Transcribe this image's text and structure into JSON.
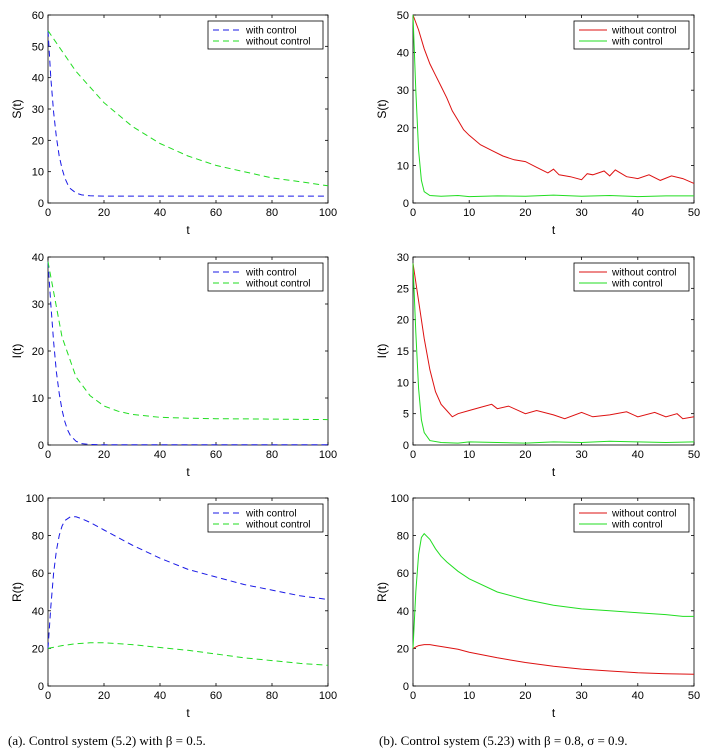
{
  "captions": {
    "left": "(a). Control system (5.2) with β = 0.5.",
    "right": "(b). Control system (5.23) with β = 0.8,  σ = 0.9."
  },
  "colors": {
    "blue": "#1a1ae6",
    "green": "#22dd22",
    "red": "#dd1111",
    "axis": "#000000"
  },
  "chart_data": [
    {
      "id": "S-left",
      "type": "line",
      "xlabel": "t",
      "ylabel": "S(t)",
      "xlim": [
        0,
        100
      ],
      "ylim": [
        0,
        60
      ],
      "xticks": [
        0,
        20,
        40,
        60,
        80,
        100
      ],
      "yticks": [
        0,
        10,
        20,
        30,
        40,
        50,
        60
      ],
      "legend": "top-right",
      "series": [
        {
          "name": "with control",
          "color": "#1a1ae6",
          "dash": true,
          "x": [
            0,
            1,
            2,
            3,
            4,
            5,
            6,
            7,
            8,
            10,
            12,
            15,
            20,
            30,
            50,
            100
          ],
          "y": [
            55,
            40,
            29,
            21,
            15,
            11,
            8,
            6,
            4.6,
            3.2,
            2.6,
            2.3,
            2.2,
            2.2,
            2.2,
            2.2
          ]
        },
        {
          "name": "without control",
          "color": "#22dd22",
          "dash": true,
          "x": [
            0,
            10,
            20,
            30,
            40,
            50,
            60,
            70,
            80,
            90,
            100
          ],
          "y": [
            55,
            42,
            32,
            24.5,
            19,
            15,
            12,
            10,
            8,
            6.8,
            5.5
          ]
        }
      ]
    },
    {
      "id": "S-right",
      "type": "line",
      "xlabel": "t",
      "ylabel": "S(t)",
      "xlim": [
        0,
        50
      ],
      "ylim": [
        0,
        50
      ],
      "xticks": [
        0,
        10,
        20,
        30,
        40,
        50
      ],
      "yticks": [
        0,
        10,
        20,
        30,
        40,
        50
      ],
      "legend": "top-right",
      "series": [
        {
          "name": "without control",
          "color": "#dd1111",
          "dash": false,
          "x": [
            0,
            1,
            2,
            3,
            4,
            5,
            6,
            7,
            8,
            9,
            10,
            12,
            14,
            16,
            18,
            20,
            22,
            24,
            25,
            26,
            28,
            30,
            31,
            32,
            34,
            35,
            36,
            38,
            40,
            42,
            44,
            46,
            48,
            50
          ],
          "y": [
            50,
            46,
            41,
            37,
            34,
            31,
            28,
            24.5,
            22,
            19.5,
            18,
            15.5,
            14,
            12.5,
            11.5,
            11,
            9.5,
            8,
            9,
            7.5,
            7,
            6.2,
            7.8,
            7.5,
            8.5,
            7.2,
            8.8,
            7,
            6.5,
            7.5,
            6,
            7.2,
            6.5,
            5.2
          ]
        },
        {
          "name": "with control",
          "color": "#22dd22",
          "dash": false,
          "x": [
            0,
            0.5,
            1,
            1.5,
            2,
            3,
            5,
            8,
            10,
            15,
            20,
            25,
            30,
            35,
            40,
            45,
            50
          ],
          "y": [
            50,
            30,
            14,
            6,
            3,
            2,
            1.8,
            2,
            1.7,
            1.9,
            1.8,
            2.1,
            1.8,
            2.0,
            1.7,
            1.9,
            1.9
          ]
        }
      ]
    },
    {
      "id": "I-left",
      "type": "line",
      "xlabel": "t",
      "ylabel": "I(t)",
      "xlim": [
        0,
        100
      ],
      "ylim": [
        0,
        40
      ],
      "xticks": [
        0,
        20,
        40,
        60,
        80,
        100
      ],
      "yticks": [
        0,
        10,
        20,
        30,
        40
      ],
      "legend": "top-right",
      "series": [
        {
          "name": "with control",
          "color": "#1a1ae6",
          "dash": true,
          "x": [
            0,
            1,
            2,
            3,
            4,
            5,
            6,
            7,
            8,
            10,
            12,
            15,
            20,
            100
          ],
          "y": [
            39,
            30,
            22,
            15.5,
            11,
            7.5,
            5,
            3.2,
            2,
            0.8,
            0.3,
            0.1,
            0.05,
            0.05
          ]
        },
        {
          "name": "without control",
          "color": "#22dd22",
          "dash": true,
          "x": [
            0,
            5,
            10,
            15,
            20,
            25,
            30,
            40,
            50,
            60,
            80,
            100
          ],
          "y": [
            39,
            23,
            14.5,
            10.5,
            8.3,
            7.2,
            6.5,
            5.9,
            5.7,
            5.6,
            5.5,
            5.4
          ]
        }
      ]
    },
    {
      "id": "I-right",
      "type": "line",
      "xlabel": "t",
      "ylabel": "I(t)",
      "xlim": [
        0,
        50
      ],
      "ylim": [
        0,
        30
      ],
      "xticks": [
        0,
        10,
        20,
        30,
        40,
        50
      ],
      "yticks": [
        0,
        5,
        10,
        15,
        20,
        25,
        30
      ],
      "legend": "top-right",
      "series": [
        {
          "name": "without control",
          "color": "#dd1111",
          "dash": false,
          "x": [
            0,
            1,
            2,
            3,
            4,
            5,
            6,
            7,
            8,
            10,
            12,
            14,
            15,
            17,
            20,
            22,
            25,
            27,
            30,
            32,
            35,
            38,
            40,
            43,
            45,
            47,
            48,
            50
          ],
          "y": [
            29,
            23,
            17,
            12,
            8.5,
            6.5,
            5.5,
            4.5,
            5,
            5.5,
            6,
            6.5,
            5.8,
            6.2,
            5,
            5.5,
            4.8,
            4.2,
            5.2,
            4.5,
            4.8,
            5.3,
            4.5,
            5.2,
            4.5,
            5.0,
            4.2,
            4.5
          ]
        },
        {
          "name": "with control",
          "color": "#22dd22",
          "dash": false,
          "x": [
            0,
            0.5,
            1,
            1.5,
            2,
            3,
            5,
            8,
            10,
            15,
            20,
            25,
            30,
            35,
            40,
            45,
            50
          ],
          "y": [
            29,
            18,
            9,
            4,
            2,
            0.7,
            0.4,
            0.3,
            0.5,
            0.4,
            0.3,
            0.5,
            0.4,
            0.6,
            0.5,
            0.4,
            0.5
          ]
        }
      ]
    },
    {
      "id": "R-left",
      "type": "line",
      "xlabel": "t",
      "ylabel": "R(t)",
      "xlim": [
        0,
        100
      ],
      "ylim": [
        0,
        100
      ],
      "xticks": [
        0,
        20,
        40,
        60,
        80,
        100
      ],
      "yticks": [
        0,
        20,
        40,
        60,
        80,
        100
      ],
      "legend": "top-right",
      "series": [
        {
          "name": "with control",
          "color": "#1a1ae6",
          "dash": true,
          "x": [
            0,
            1,
            2,
            3,
            4,
            5,
            6,
            8,
            10,
            12,
            15,
            20,
            30,
            40,
            50,
            60,
            70,
            80,
            90,
            100
          ],
          "y": [
            20,
            42,
            60,
            72,
            80,
            85,
            88,
            90,
            90,
            89,
            87,
            83,
            75,
            68,
            62,
            58,
            54,
            51,
            48,
            46
          ]
        },
        {
          "name": "without control",
          "color": "#22dd22",
          "dash": true,
          "x": [
            0,
            5,
            10,
            15,
            20,
            30,
            40,
            50,
            60,
            70,
            80,
            90,
            100
          ],
          "y": [
            20,
            21.5,
            22.5,
            23,
            23,
            22,
            20.5,
            19,
            17,
            15,
            13.5,
            12,
            11
          ]
        }
      ]
    },
    {
      "id": "R-right",
      "type": "line",
      "xlabel": "t",
      "ylabel": "R(t)",
      "xlim": [
        0,
        50
      ],
      "ylim": [
        0,
        100
      ],
      "xticks": [
        0,
        10,
        20,
        30,
        40,
        50
      ],
      "yticks": [
        0,
        20,
        40,
        60,
        80,
        100
      ],
      "legend": "top-right",
      "series": [
        {
          "name": "without control",
          "color": "#dd1111",
          "dash": false,
          "x": [
            0,
            1,
            2,
            3,
            4,
            5,
            8,
            10,
            15,
            20,
            25,
            30,
            35,
            40,
            45,
            50
          ],
          "y": [
            20,
            21.5,
            22,
            22,
            21.5,
            21,
            19.5,
            18,
            15,
            12.5,
            10.5,
            9,
            8,
            7,
            6.5,
            6.2
          ]
        },
        {
          "name": "with control",
          "color": "#22dd22",
          "dash": false,
          "x": [
            0,
            0.5,
            1,
            1.5,
            2,
            3,
            4,
            5,
            6,
            8,
            10,
            15,
            20,
            25,
            30,
            35,
            40,
            45,
            48,
            50
          ],
          "y": [
            20,
            50,
            70,
            79,
            81,
            78,
            73,
            69,
            66,
            61,
            57,
            50,
            46,
            43,
            41,
            40,
            39,
            38,
            37,
            37
          ]
        }
      ]
    }
  ]
}
